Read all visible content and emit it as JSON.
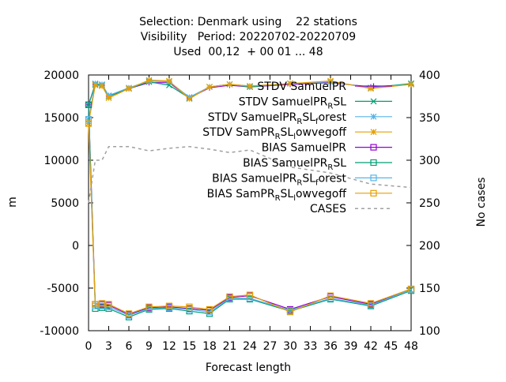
{
  "chart_data": {
    "type": "line",
    "title_lines": [
      "Selection: Denmark using    22 stations",
      "Visibility   Period: 20220702-20220709",
      "Used  00,12  + 00 01 ... 48"
    ],
    "xlabel": "Forecast length",
    "ylabel": "m",
    "y2label": "No cases",
    "xlim": [
      0,
      48
    ],
    "ylim": [
      -10000,
      20000
    ],
    "y2lim": [
      100,
      400
    ],
    "xticks": [
      0,
      3,
      6,
      9,
      12,
      15,
      18,
      21,
      24,
      27,
      30,
      33,
      36,
      39,
      42,
      45,
      48
    ],
    "yticks": [
      -10000,
      -5000,
      0,
      5000,
      10000,
      15000,
      20000
    ],
    "y2ticks": [
      100,
      150,
      200,
      250,
      300,
      350,
      400
    ],
    "grid": false,
    "legend_position": "top-right",
    "x": [
      0,
      1,
      2,
      3,
      6,
      9,
      12,
      15,
      18,
      21,
      24,
      30,
      36,
      42,
      48
    ],
    "series": [
      {
        "name": "STDV SamuelPR",
        "axis": "y1",
        "color": "#9400d3",
        "marker": "plus",
        "values": [
          16500,
          18900,
          18800,
          17500,
          18400,
          19100,
          19100,
          17300,
          18500,
          18800,
          18600,
          18900,
          19100,
          18600,
          18900
        ]
      },
      {
        "name": "STDV SamuelPR_RSL",
        "axis": "y1",
        "color": "#009e73",
        "marker": "x",
        "values": [
          16500,
          18900,
          18800,
          17500,
          18400,
          19200,
          18800,
          17300,
          18600,
          18900,
          18600,
          19000,
          19200,
          18500,
          19000
        ]
      },
      {
        "name": "STDV SamuelPR_RSL_forest",
        "axis": "y1",
        "color": "#56b4e9",
        "marker": "star",
        "values": [
          14800,
          19000,
          18900,
          17600,
          18500,
          19300,
          19200,
          17400,
          18600,
          18900,
          18700,
          19000,
          19200,
          18500,
          18900
        ]
      },
      {
        "name": "STDV SamPR_RSL_lowvegoff",
        "axis": "y1",
        "color": "#e69f00",
        "marker": "star",
        "values": [
          14300,
          18800,
          18700,
          17300,
          18400,
          19400,
          19300,
          17200,
          18600,
          18900,
          18700,
          19000,
          19300,
          18400,
          18900
        ]
      },
      {
        "name": "BIAS SamuelPR",
        "axis": "y1",
        "color": "#9400d3",
        "marker": "square",
        "values": [
          16500,
          -6900,
          -6900,
          -7000,
          -8100,
          -7300,
          -7200,
          -7400,
          -7600,
          -6100,
          -5900,
          -7500,
          -6000,
          -6900,
          -5100
        ]
      },
      {
        "name": "BIAS SamuelPR_RSL",
        "axis": "y1",
        "color": "#009e73",
        "marker": "square",
        "values": [
          16500,
          -7400,
          -7300,
          -7400,
          -8400,
          -7500,
          -7400,
          -7700,
          -8000,
          -6300,
          -6300,
          -7700,
          -6300,
          -7100,
          -5300
        ]
      },
      {
        "name": "BIAS SamuelPR_RSL_forest",
        "axis": "y1",
        "color": "#56b4e9",
        "marker": "square",
        "values": [
          14800,
          -7100,
          -7100,
          -7200,
          -8200,
          -7400,
          -7300,
          -7500,
          -7800,
          -6200,
          -6200,
          -7600,
          -6200,
          -7000,
          -5200
        ]
      },
      {
        "name": "BIAS SamPR_RSL_lowvegoff",
        "axis": "y1",
        "color": "#e69f00",
        "marker": "square",
        "values": [
          14300,
          -6900,
          -6800,
          -6900,
          -8000,
          -7200,
          -7100,
          -7200,
          -7500,
          -6000,
          -5800,
          -7800,
          -5900,
          -6800,
          -5100
        ]
      },
      {
        "name": "CASES",
        "axis": "y2",
        "color": "#a0a0a0",
        "marker": "none",
        "dashed": true,
        "x": [
          0,
          1,
          2,
          3,
          6,
          9,
          12,
          15,
          18,
          21,
          24,
          30,
          36,
          42,
          48
        ],
        "values": [
          250,
          300,
          300,
          316,
          316,
          311,
          314,
          316,
          313,
          309,
          312,
          292,
          285,
          272,
          268
        ]
      }
    ]
  },
  "legend": [
    {
      "base": "STDV SamuelPR"
    },
    {
      "base": "STDV SamuelPR",
      "sub": "R",
      "tail": "SL"
    },
    {
      "base": "STDV SamuelPR",
      "sub": "R",
      "tail": "SL",
      "sub2": "f",
      "tail2": "orest"
    },
    {
      "base": "STDV SamPR",
      "sub": "R",
      "tail": "SL",
      "sub2": "l",
      "tail2": "owvegoff"
    },
    {
      "base": "BIAS SamuelPR"
    },
    {
      "base": "BIAS SamuelPR",
      "sub": "R",
      "tail": "SL"
    },
    {
      "base": "BIAS SamuelPR",
      "sub": "R",
      "tail": "SL",
      "sub2": "f",
      "tail2": "orest"
    },
    {
      "base": "BIAS SamPR",
      "sub": "R",
      "tail": "SL",
      "sub2": "l",
      "tail2": "owvegoff"
    },
    {
      "base": "CASES"
    }
  ]
}
